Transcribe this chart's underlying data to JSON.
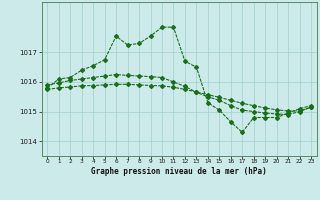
{
  "title": "Graphe pression niveau de la mer (hPa)",
  "background_color": "#cdeaea",
  "grid_color": "#9ecfcf",
  "line_color": "#1a6e1a",
  "spine_color": "#5a8a5a",
  "xlim": [
    -0.5,
    23.5
  ],
  "ylim": [
    1013.5,
    1018.7
  ],
  "yticks": [
    1014,
    1015,
    1016,
    1017
  ],
  "xticks": [
    0,
    1,
    2,
    3,
    4,
    5,
    6,
    7,
    8,
    9,
    10,
    11,
    12,
    13,
    14,
    15,
    16,
    17,
    18,
    19,
    20,
    21,
    22,
    23
  ],
  "series1_x": [
    0,
    1,
    2,
    3,
    4,
    5,
    6,
    7,
    8,
    9,
    10,
    11,
    12,
    13,
    14,
    15,
    16,
    17,
    18,
    19,
    20,
    21,
    22,
    23
  ],
  "series1_y": [
    1015.8,
    1016.1,
    1016.15,
    1016.4,
    1016.55,
    1016.75,
    1017.55,
    1017.25,
    1017.3,
    1017.55,
    1017.85,
    1017.85,
    1016.7,
    1016.5,
    1015.3,
    1015.05,
    1014.65,
    1014.3,
    1014.8,
    1014.8,
    1014.8,
    1014.95,
    1015.1,
    1015.2
  ],
  "series2_x": [
    0,
    1,
    2,
    3,
    4,
    5,
    6,
    7,
    8,
    9,
    10,
    11,
    12,
    13,
    14,
    15,
    16,
    17,
    18,
    19,
    20,
    21,
    22,
    23
  ],
  "series2_y": [
    1015.9,
    1015.97,
    1016.05,
    1016.1,
    1016.15,
    1016.2,
    1016.25,
    1016.22,
    1016.2,
    1016.18,
    1016.15,
    1016.0,
    1015.85,
    1015.65,
    1015.5,
    1015.38,
    1015.2,
    1015.05,
    1015.0,
    1014.95,
    1014.92,
    1014.9,
    1015.0,
    1015.15
  ],
  "series3_x": [
    0,
    1,
    2,
    3,
    4,
    5,
    6,
    7,
    8,
    9,
    10,
    11,
    12,
    13,
    14,
    15,
    16,
    17,
    18,
    19,
    20,
    21,
    22,
    23
  ],
  "series3_y": [
    1015.75,
    1015.8,
    1015.83,
    1015.87,
    1015.88,
    1015.9,
    1015.92,
    1015.92,
    1015.9,
    1015.88,
    1015.87,
    1015.82,
    1015.75,
    1015.66,
    1015.57,
    1015.48,
    1015.38,
    1015.28,
    1015.2,
    1015.12,
    1015.06,
    1015.02,
    1015.02,
    1015.15
  ]
}
